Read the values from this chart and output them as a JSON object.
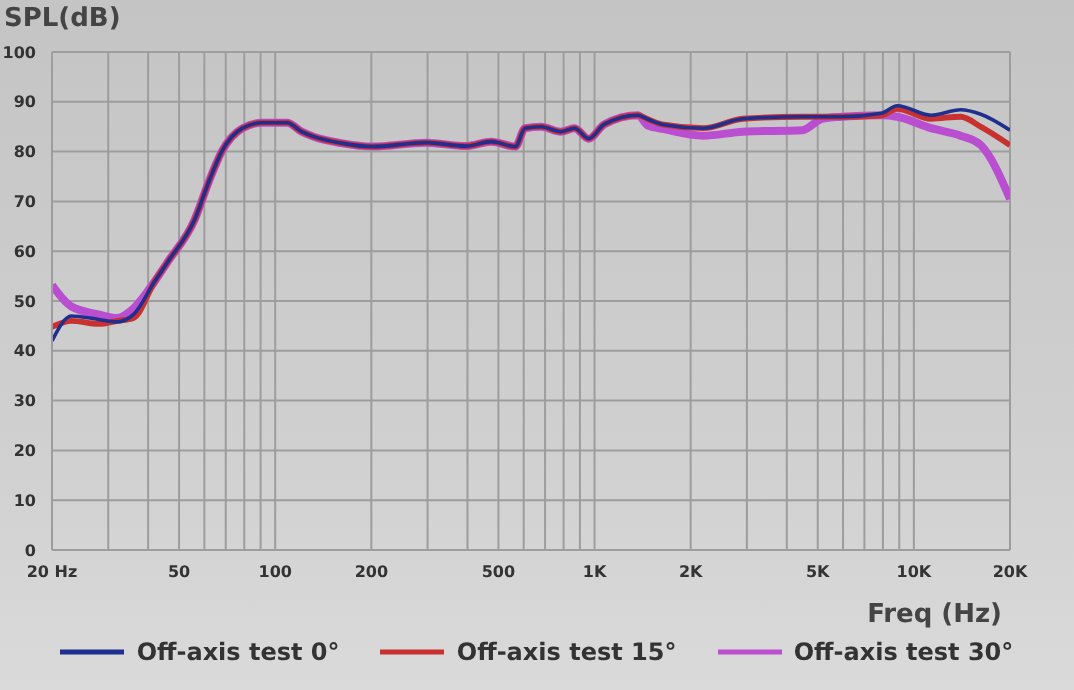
{
  "chart_data": {
    "type": "line",
    "xlabel": "Freq (Hz)",
    "ylabel": "SPL(dB)",
    "log": "x",
    "grid": true,
    "legend": "bottom",
    "marker": "none",
    "line_style": "solid",
    "xlim": [
      20,
      20000
    ],
    "xticks": [
      {
        "value": 20,
        "label": "20  Hz"
      },
      {
        "value": 30,
        "label": null
      },
      {
        "value": 40,
        "label": null
      },
      50,
      {
        "value": 60,
        "label": null
      },
      {
        "value": 70,
        "label": null
      },
      {
        "value": 80,
        "label": null
      },
      {
        "value": 90,
        "label": null
      },
      100,
      200,
      {
        "value": 300,
        "label": null
      },
      {
        "value": 400,
        "label": null
      },
      500,
      {
        "value": 600,
        "label": null
      },
      {
        "value": 700,
        "label": null
      },
      {
        "value": 800,
        "label": null
      },
      {
        "value": 900,
        "label": null
      },
      {
        "value": 1000,
        "label": "1K"
      },
      {
        "value": 2000,
        "label": "2K"
      },
      {
        "value": 3000,
        "label": null
      },
      {
        "value": 4000,
        "label": null
      },
      {
        "value": 5000,
        "label": "5K"
      },
      {
        "value": 6000,
        "label": null
      },
      {
        "value": 7000,
        "label": null
      },
      {
        "value": 8000,
        "label": null
      },
      {
        "value": 9000,
        "label": null
      },
      {
        "value": 10000,
        "label": "10K"
      },
      {
        "value": 20000,
        "label": "20K"
      }
    ],
    "ylim": [
      0,
      100
    ],
    "yticks": [
      0,
      10,
      20,
      30,
      40,
      50,
      60,
      70,
      80,
      90,
      100
    ],
    "x": [
      20,
      23,
      28,
      32,
      36,
      42,
      46,
      56,
      62,
      68,
      79,
      91,
      109,
      121,
      132,
      161,
      202,
      297,
      395,
      475,
      565,
      606,
      680,
      784,
      866,
      958,
      1074,
      1368,
      1470,
      1648,
      2190,
      2916,
      4476,
      5160,
      5954,
      7925,
      8870,
      11320,
      14000,
      16200,
      20000
    ],
    "series": [
      {
        "name": "Off-axis test 0°",
        "color": "#1f2f8f",
        "values": [
          42,
          47,
          46.3,
          45.8,
          47.3,
          54,
          57.8,
          66.4,
          74,
          80,
          84.7,
          85.8,
          85.8,
          84,
          83,
          81.7,
          81,
          81.8,
          81.1,
          82,
          81,
          84.7,
          85,
          84,
          84.7,
          82.6,
          85.5,
          87.3,
          86.5,
          85.4,
          84.7,
          86.6,
          87,
          87,
          87,
          87.7,
          89.2,
          87.3,
          88.4,
          87.5,
          84.3
        ]
      },
      {
        "name": "Off-axis test 15°",
        "color": "#c8312f",
        "values": [
          44.8,
          46,
          45.4,
          46,
          46.6,
          54,
          57.8,
          66.4,
          74,
          80,
          84.7,
          85.8,
          85.8,
          84,
          83,
          81.7,
          81,
          81.8,
          81.1,
          82,
          81,
          84.7,
          85,
          84,
          84.7,
          82.6,
          85.5,
          87.3,
          86.5,
          85.4,
          84.7,
          86.6,
          87,
          87,
          87,
          87.3,
          88.6,
          86.6,
          87,
          85,
          81.3
        ]
      },
      {
        "name": "Off-axis test 30°",
        "color": "#b94fd0",
        "values": [
          53.2,
          48.9,
          47.3,
          46.6,
          48.5,
          54,
          57.8,
          66.4,
          74,
          80,
          84.7,
          85.8,
          85.8,
          84,
          83,
          81.7,
          81,
          81.8,
          81.1,
          82,
          81,
          84.7,
          85,
          84,
          84.7,
          82.6,
          85.5,
          87.3,
          85.2,
          84.5,
          83.2,
          84,
          84.3,
          86.6,
          87,
          87.3,
          87,
          84.7,
          83.2,
          81.3,
          70.5
        ]
      }
    ]
  }
}
